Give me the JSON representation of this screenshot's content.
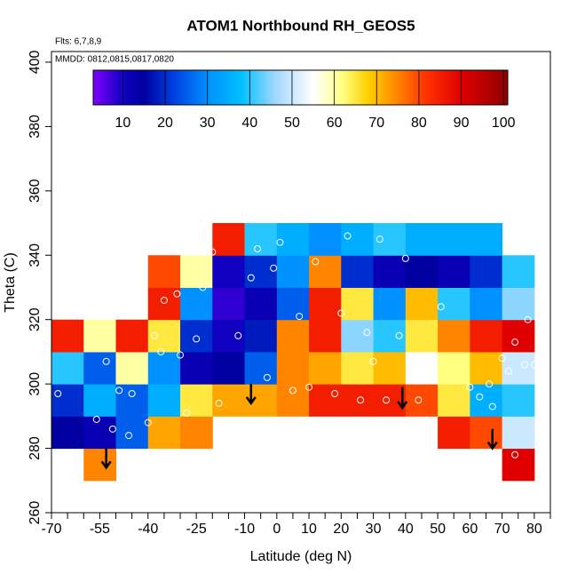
{
  "chart_data": {
    "type": "heatmap",
    "title": "ATOM1 Northbound RH_GEOS5",
    "subtitle": "Flts: 6,7,8,9",
    "annotation": "MMDD: 0812,0815,0817,0820",
    "xlabel": "Latitude (deg N)",
    "ylabel": "Theta (C)",
    "xlim": [
      -70,
      85
    ],
    "ylim": [
      260,
      403.3
    ],
    "xticks": [
      -70,
      -55,
      -40,
      -25,
      -10,
      0,
      10,
      20,
      30,
      40,
      50,
      60,
      70,
      80
    ],
    "xminor": [
      -65,
      -60,
      -50,
      -45,
      -35,
      -30,
      -20,
      -15,
      -5,
      5,
      15,
      25,
      35,
      45,
      55,
      65,
      75,
      85
    ],
    "yticks": [
      260,
      280,
      300,
      320,
      340,
      360,
      380,
      400
    ],
    "lat_edges": [
      -70,
      -60,
      -50,
      -40,
      -30,
      -20,
      -10,
      0,
      10,
      20,
      30,
      40,
      50,
      60,
      70,
      80
    ],
    "theta_edges": [
      270,
      280,
      290,
      300,
      310,
      320,
      330,
      340,
      350
    ],
    "z": [
      [
        null,
        75,
        null,
        null,
        null,
        null,
        null,
        null,
        null,
        null,
        null,
        null,
        null,
        null,
        90
      ],
      [
        15,
        12,
        25,
        72,
        75,
        null,
        null,
        null,
        null,
        null,
        null,
        null,
        85,
        80,
        50
      ],
      [
        20,
        35,
        25,
        35,
        65,
        72,
        72,
        75,
        85,
        85,
        85,
        80,
        65,
        35,
        40
      ],
      [
        40,
        25,
        60,
        30,
        12,
        15,
        25,
        75,
        72,
        65,
        70,
        55,
        62,
        70,
        50
      ],
      [
        85,
        60,
        85,
        65,
        20,
        10,
        18,
        75,
        85,
        45,
        40,
        65,
        75,
        85,
        90
      ],
      [
        null,
        null,
        null,
        85,
        30,
        8,
        12,
        25,
        85,
        65,
        30,
        70,
        40,
        30,
        45
      ],
      [
        null,
        null,
        null,
        80,
        60,
        10,
        20,
        30,
        75,
        20,
        12,
        15,
        12,
        20,
        40
      ],
      [
        null,
        null,
        null,
        null,
        null,
        85,
        40,
        35,
        30,
        35,
        40,
        35,
        35,
        35,
        null
      ]
    ],
    "colorscale": [
      [
        3,
        "#8000ff"
      ],
      [
        10,
        "#1000c0"
      ],
      [
        15,
        "#0000a0"
      ],
      [
        22,
        "#0040e0"
      ],
      [
        30,
        "#0090ff"
      ],
      [
        38,
        "#00c0ff"
      ],
      [
        46,
        "#a0d8ff"
      ],
      [
        55,
        "#ffffff"
      ],
      [
        62,
        "#ffff80"
      ],
      [
        68,
        "#ffd000"
      ],
      [
        74,
        "#ff9000"
      ],
      [
        82,
        "#ff3000"
      ],
      [
        90,
        "#e00000"
      ],
      [
        101,
        "#900000"
      ]
    ],
    "clim": [
      3,
      101
    ],
    "cticks": [
      10,
      20,
      30,
      40,
      50,
      60,
      70,
      80,
      90,
      100
    ],
    "points": {
      "x": [
        -68,
        -56,
        -53,
        -51,
        -49,
        -46,
        -45,
        -40,
        -38,
        -36,
        -35,
        -31,
        -30,
        -28,
        -25,
        -23,
        -20,
        -18,
        -12,
        -8,
        -6,
        -3,
        -1,
        1,
        5,
        7,
        10,
        12,
        18,
        20,
        22,
        26,
        28,
        30,
        32,
        34,
        38,
        40,
        44,
        51,
        60,
        63,
        66,
        67,
        70,
        72,
        72,
        74,
        74,
        77,
        78,
        80
      ],
      "y": [
        297,
        289,
        307,
        286,
        298,
        284,
        297,
        288,
        315,
        310,
        326,
        328,
        309,
        291,
        314,
        330,
        341,
        294,
        315,
        333,
        342,
        302,
        336,
        344,
        298,
        321,
        299,
        338,
        297,
        322,
        346,
        295,
        316,
        307,
        345,
        295,
        315,
        339,
        295,
        324,
        299,
        296,
        300,
        293,
        308,
        304,
        343,
        313,
        278,
        306,
        320,
        306
      ]
    },
    "arrows": {
      "x": [
        -53,
        -8,
        39,
        67
      ],
      "from": [
        280,
        300,
        299,
        286
      ],
      "to": [
        274,
        294,
        292.6,
        280
      ]
    }
  }
}
